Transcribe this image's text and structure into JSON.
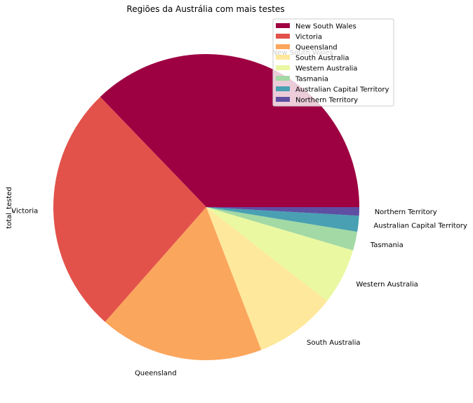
{
  "chart_data": {
    "type": "pie",
    "title": "Regiões da Austrália com mais testes",
    "ylabel": "total_tested",
    "start_angle_deg": 0,
    "direction": "counterclockwise",
    "legend_position": "top-right",
    "categories": [
      "New South Wales",
      "Victoria",
      "Queensland",
      "South Australia",
      "Western Australia",
      "Tasmania",
      "Australian Capital Territory",
      "Northern Territory"
    ],
    "values": [
      37.5,
      26.5,
      17.5,
      8.7,
      6.0,
      2.0,
      1.7,
      0.9
    ],
    "colors": [
      "#9e0142",
      "#e2524a",
      "#fba65d",
      "#fee89b",
      "#eaf8a1",
      "#a2d9a4",
      "#48a0b2",
      "#5e4fa2"
    ]
  }
}
